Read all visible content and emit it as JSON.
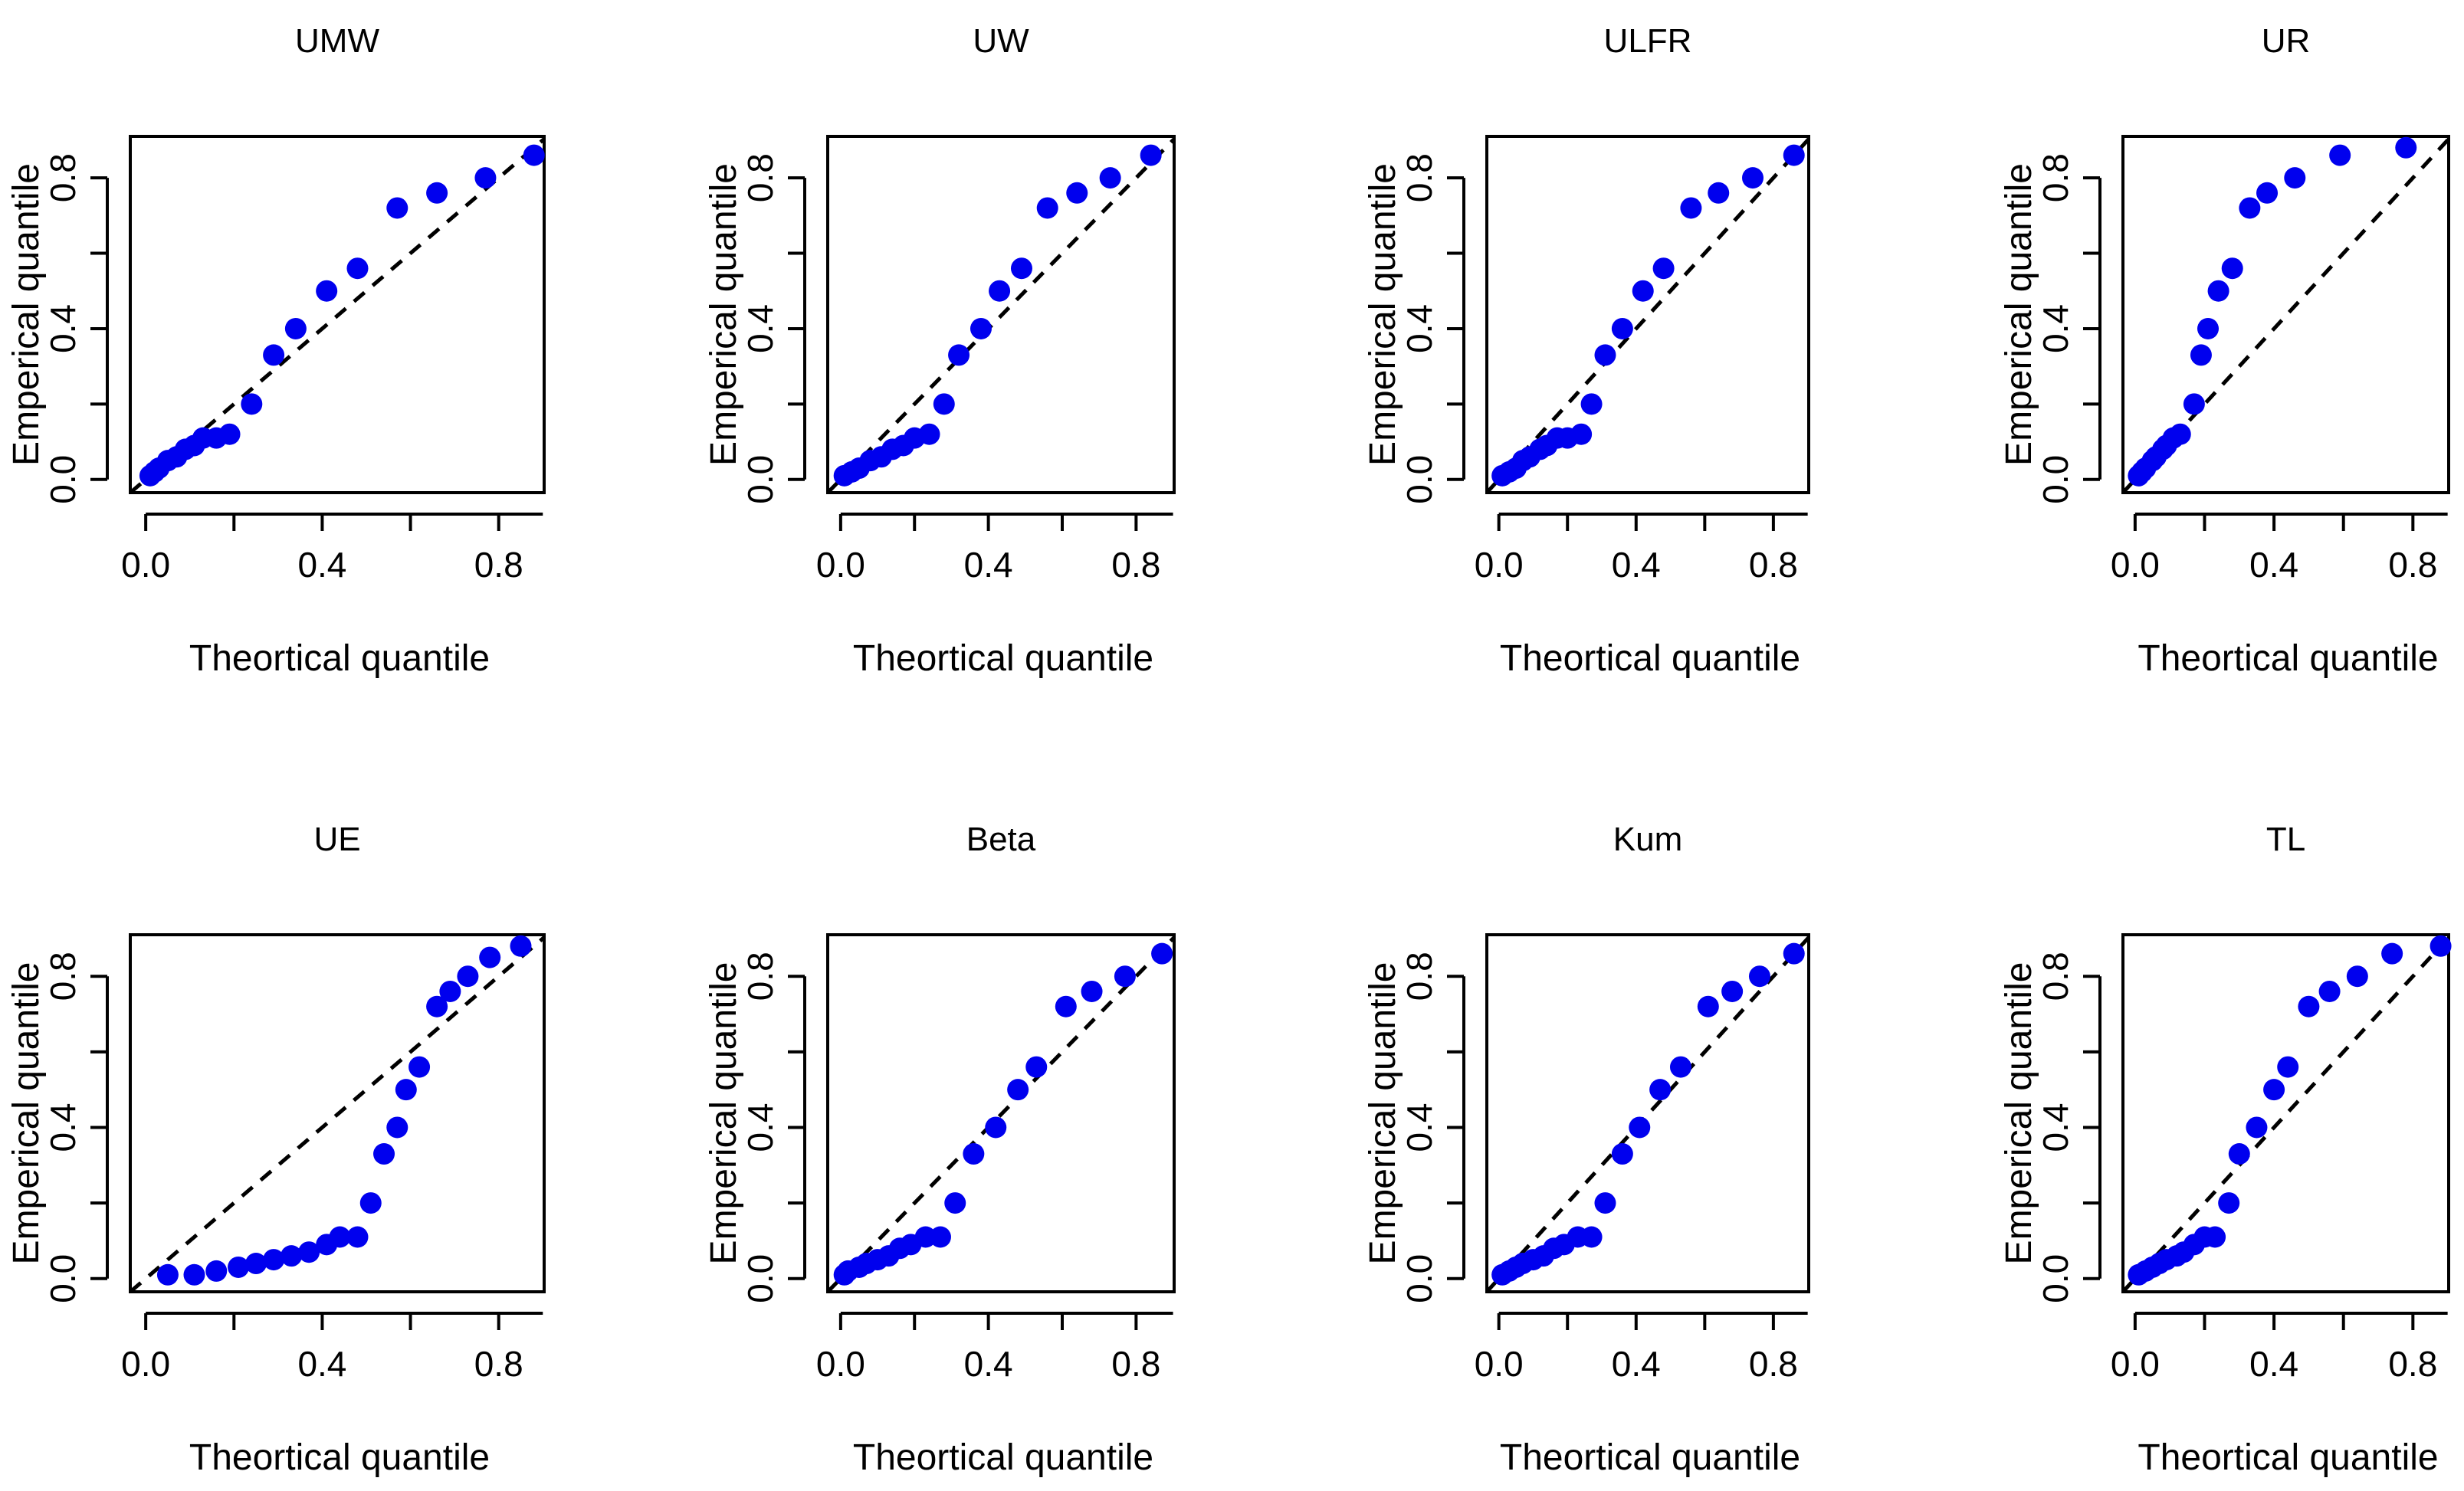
{
  "figure": {
    "dot_color": "#0000ee",
    "line_color": "#000000"
  },
  "chart_data": [
    {
      "type": "scatter",
      "title": "UMW",
      "xlabel": "Theortical quantile",
      "ylabel": "Emperical quantile",
      "xlim": [
        0,
        0.9
      ],
      "ylim": [
        0,
        0.9
      ],
      "xticks": [
        0.0,
        0.4,
        0.8
      ],
      "yticks": [
        0.0,
        0.4,
        0.8
      ],
      "xtick_labels": [
        "0.0",
        "0.4",
        "0.8"
      ],
      "ytick_labels": [
        "0.0",
        "0.4",
        "0.8"
      ],
      "reference_line": "y = x (dashed)",
      "points": [
        [
          0.01,
          0.01
        ],
        [
          0.02,
          0.02
        ],
        [
          0.03,
          0.03
        ],
        [
          0.05,
          0.05
        ],
        [
          0.07,
          0.06
        ],
        [
          0.09,
          0.08
        ],
        [
          0.11,
          0.09
        ],
        [
          0.13,
          0.11
        ],
        [
          0.16,
          0.11
        ],
        [
          0.19,
          0.12
        ],
        [
          0.24,
          0.2
        ],
        [
          0.29,
          0.33
        ],
        [
          0.34,
          0.4
        ],
        [
          0.41,
          0.5
        ],
        [
          0.48,
          0.56
        ],
        [
          0.57,
          0.72
        ],
        [
          0.66,
          0.76
        ],
        [
          0.77,
          0.8
        ],
        [
          0.88,
          0.86
        ]
      ]
    },
    {
      "type": "scatter",
      "title": "UW",
      "xlabel": "Theortical quantile",
      "ylabel": "Emperical quantile",
      "xlim": [
        0,
        0.9
      ],
      "ylim": [
        0,
        0.9
      ],
      "xticks": [
        0.0,
        0.4,
        0.8
      ],
      "yticks": [
        0.0,
        0.4,
        0.8
      ],
      "xtick_labels": [
        "0.0",
        "0.4",
        "0.8"
      ],
      "ytick_labels": [
        "0.0",
        "0.4",
        "0.8"
      ],
      "reference_line": "y = x (dashed)",
      "points": [
        [
          0.01,
          0.01
        ],
        [
          0.03,
          0.02
        ],
        [
          0.05,
          0.03
        ],
        [
          0.08,
          0.05
        ],
        [
          0.11,
          0.06
        ],
        [
          0.14,
          0.08
        ],
        [
          0.17,
          0.09
        ],
        [
          0.2,
          0.11
        ],
        [
          0.24,
          0.12
        ],
        [
          0.28,
          0.2
        ],
        [
          0.32,
          0.33
        ],
        [
          0.38,
          0.4
        ],
        [
          0.43,
          0.5
        ],
        [
          0.49,
          0.56
        ],
        [
          0.56,
          0.72
        ],
        [
          0.64,
          0.76
        ],
        [
          0.73,
          0.8
        ],
        [
          0.84,
          0.86
        ]
      ]
    },
    {
      "type": "scatter",
      "title": "ULFR",
      "xlabel": "Theortical quantile",
      "ylabel": "Emperical quantile",
      "xlim": [
        0,
        0.9
      ],
      "ylim": [
        0,
        0.9
      ],
      "xticks": [
        0.0,
        0.4,
        0.8
      ],
      "yticks": [
        0.0,
        0.4,
        0.8
      ],
      "xtick_labels": [
        "0.0",
        "0.4",
        "0.8"
      ],
      "ytick_labels": [
        "0.0",
        "0.4",
        "0.8"
      ],
      "reference_line": "y = x (dashed)",
      "points": [
        [
          0.01,
          0.01
        ],
        [
          0.03,
          0.02
        ],
        [
          0.05,
          0.03
        ],
        [
          0.07,
          0.05
        ],
        [
          0.09,
          0.06
        ],
        [
          0.12,
          0.08
        ],
        [
          0.14,
          0.09
        ],
        [
          0.17,
          0.11
        ],
        [
          0.2,
          0.11
        ],
        [
          0.24,
          0.12
        ],
        [
          0.27,
          0.2
        ],
        [
          0.31,
          0.33
        ],
        [
          0.36,
          0.4
        ],
        [
          0.42,
          0.5
        ],
        [
          0.48,
          0.56
        ],
        [
          0.56,
          0.72
        ],
        [
          0.64,
          0.76
        ],
        [
          0.74,
          0.8
        ],
        [
          0.86,
          0.86
        ]
      ]
    },
    {
      "type": "scatter",
      "title": "UR",
      "xlabel": "Theortical quantile",
      "ylabel": "Emperical quantile",
      "xlim": [
        0,
        0.9
      ],
      "ylim": [
        0,
        0.9
      ],
      "xticks": [
        0.0,
        0.4,
        0.8
      ],
      "yticks": [
        0.0,
        0.4,
        0.8
      ],
      "xtick_labels": [
        "0.0",
        "0.4",
        "0.8"
      ],
      "ytick_labels": [
        "0.0",
        "0.4",
        "0.8"
      ],
      "reference_line": "y = x (dashed)",
      "points": [
        [
          0.01,
          0.01
        ],
        [
          0.02,
          0.02
        ],
        [
          0.03,
          0.03
        ],
        [
          0.05,
          0.05
        ],
        [
          0.06,
          0.06
        ],
        [
          0.08,
          0.08
        ],
        [
          0.09,
          0.09
        ],
        [
          0.11,
          0.11
        ],
        [
          0.13,
          0.12
        ],
        [
          0.17,
          0.2
        ],
        [
          0.19,
          0.33
        ],
        [
          0.21,
          0.4
        ],
        [
          0.24,
          0.5
        ],
        [
          0.28,
          0.56
        ],
        [
          0.33,
          0.72
        ],
        [
          0.38,
          0.76
        ],
        [
          0.46,
          0.8
        ],
        [
          0.59,
          0.86
        ],
        [
          0.78,
          0.88
        ]
      ]
    },
    {
      "type": "scatter",
      "title": "UE",
      "xlabel": "Theortical quantile",
      "ylabel": "Emperical quantile",
      "xlim": [
        0,
        0.9
      ],
      "ylim": [
        0,
        0.9
      ],
      "xticks": [
        0.0,
        0.4,
        0.8
      ],
      "yticks": [
        0.0,
        0.4,
        0.8
      ],
      "xtick_labels": [
        "0.0",
        "0.4",
        "0.8"
      ],
      "ytick_labels": [
        "0.0",
        "0.4",
        "0.8"
      ],
      "reference_line": "y = x (dashed)",
      "points": [
        [
          0.05,
          0.01
        ],
        [
          0.11,
          0.01
        ],
        [
          0.16,
          0.02
        ],
        [
          0.21,
          0.03
        ],
        [
          0.25,
          0.04
        ],
        [
          0.29,
          0.05
        ],
        [
          0.33,
          0.06
        ],
        [
          0.37,
          0.07
        ],
        [
          0.41,
          0.09
        ],
        [
          0.44,
          0.11
        ],
        [
          0.48,
          0.11
        ],
        [
          0.51,
          0.2
        ],
        [
          0.54,
          0.33
        ],
        [
          0.57,
          0.4
        ],
        [
          0.59,
          0.5
        ],
        [
          0.62,
          0.56
        ],
        [
          0.66,
          0.72
        ],
        [
          0.69,
          0.76
        ],
        [
          0.73,
          0.8
        ],
        [
          0.78,
          0.85
        ],
        [
          0.85,
          0.88
        ]
      ]
    },
    {
      "type": "scatter",
      "title": "Beta",
      "xlabel": "Theortical quantile",
      "ylabel": "Emperical quantile",
      "xlim": [
        0,
        0.9
      ],
      "ylim": [
        0,
        0.9
      ],
      "xticks": [
        0.0,
        0.4,
        0.8
      ],
      "yticks": [
        0.0,
        0.4,
        0.8
      ],
      "xtick_labels": [
        "0.0",
        "0.4",
        "0.8"
      ],
      "ytick_labels": [
        "0.0",
        "0.4",
        "0.8"
      ],
      "reference_line": "y = x (dashed)",
      "points": [
        [
          0.01,
          0.01
        ],
        [
          0.02,
          0.02
        ],
        [
          0.05,
          0.03
        ],
        [
          0.07,
          0.04
        ],
        [
          0.1,
          0.05
        ],
        [
          0.13,
          0.06
        ],
        [
          0.16,
          0.08
        ],
        [
          0.19,
          0.09
        ],
        [
          0.23,
          0.11
        ],
        [
          0.27,
          0.11
        ],
        [
          0.31,
          0.2
        ],
        [
          0.36,
          0.33
        ],
        [
          0.42,
          0.4
        ],
        [
          0.48,
          0.5
        ],
        [
          0.53,
          0.56
        ],
        [
          0.61,
          0.72
        ],
        [
          0.68,
          0.76
        ],
        [
          0.77,
          0.8
        ],
        [
          0.87,
          0.86
        ]
      ]
    },
    {
      "type": "scatter",
      "title": "Kum",
      "xlabel": "Theortical quantile",
      "ylabel": "Emperical quantile",
      "xlim": [
        0,
        0.9
      ],
      "ylim": [
        0,
        0.9
      ],
      "xticks": [
        0.0,
        0.4,
        0.8
      ],
      "yticks": [
        0.0,
        0.4,
        0.8
      ],
      "xtick_labels": [
        "0.0",
        "0.4",
        "0.8"
      ],
      "ytick_labels": [
        "0.0",
        "0.4",
        "0.8"
      ],
      "reference_line": "y = x (dashed)",
      "points": [
        [
          0.01,
          0.01
        ],
        [
          0.03,
          0.02
        ],
        [
          0.05,
          0.03
        ],
        [
          0.07,
          0.04
        ],
        [
          0.1,
          0.05
        ],
        [
          0.13,
          0.06
        ],
        [
          0.16,
          0.08
        ],
        [
          0.19,
          0.09
        ],
        [
          0.23,
          0.11
        ],
        [
          0.27,
          0.11
        ],
        [
          0.31,
          0.2
        ],
        [
          0.36,
          0.33
        ],
        [
          0.41,
          0.4
        ],
        [
          0.47,
          0.5
        ],
        [
          0.53,
          0.56
        ],
        [
          0.61,
          0.72
        ],
        [
          0.68,
          0.76
        ],
        [
          0.76,
          0.8
        ],
        [
          0.86,
          0.86
        ]
      ]
    },
    {
      "type": "scatter",
      "title": "TL",
      "xlabel": "Theortical quantile",
      "ylabel": "Emperical quantile",
      "xlim": [
        0,
        0.9
      ],
      "ylim": [
        0,
        0.9
      ],
      "xticks": [
        0.0,
        0.4,
        0.8
      ],
      "yticks": [
        0.0,
        0.4,
        0.8
      ],
      "xtick_labels": [
        "0.0",
        "0.4",
        "0.8"
      ],
      "ytick_labels": [
        "0.0",
        "0.4",
        "0.8"
      ],
      "reference_line": "y = x (dashed)",
      "points": [
        [
          0.01,
          0.01
        ],
        [
          0.03,
          0.02
        ],
        [
          0.05,
          0.03
        ],
        [
          0.07,
          0.04
        ],
        [
          0.09,
          0.05
        ],
        [
          0.12,
          0.06
        ],
        [
          0.14,
          0.07
        ],
        [
          0.17,
          0.09
        ],
        [
          0.2,
          0.11
        ],
        [
          0.23,
          0.11
        ],
        [
          0.27,
          0.2
        ],
        [
          0.3,
          0.33
        ],
        [
          0.35,
          0.4
        ],
        [
          0.4,
          0.5
        ],
        [
          0.44,
          0.56
        ],
        [
          0.5,
          0.72
        ],
        [
          0.56,
          0.76
        ],
        [
          0.64,
          0.8
        ],
        [
          0.74,
          0.86
        ],
        [
          0.88,
          0.88
        ]
      ]
    }
  ]
}
